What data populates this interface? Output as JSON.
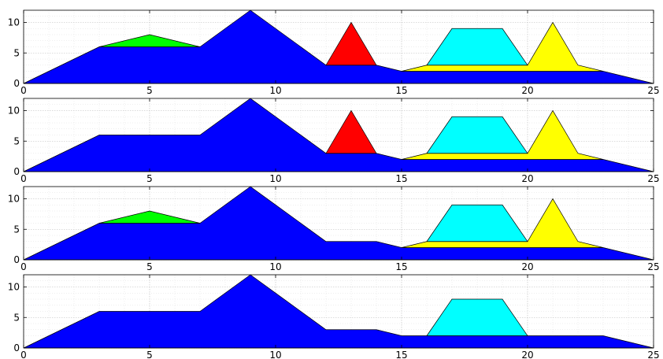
{
  "chart_data": [
    {
      "type": "area",
      "stacked": true,
      "xlim": [
        0,
        25
      ],
      "ylim": [
        0,
        12
      ],
      "xticks": [
        "0",
        "5",
        "10",
        "15",
        "20",
        "25"
      ],
      "yticks": [
        "0",
        "5",
        "10"
      ],
      "grid": true,
      "series": [
        {
          "color": "#0000ff",
          "points": [
            [
              0,
              0
            ],
            [
              3,
              6
            ],
            [
              7,
              6
            ],
            [
              9,
              12
            ],
            [
              12,
              3
            ],
            [
              14,
              3
            ],
            [
              15,
              2
            ],
            [
              23,
              2
            ],
            [
              25,
              0
            ]
          ]
        },
        {
          "color": "#00ff00",
          "points": [
            [
              3,
              0
            ],
            [
              5,
              2
            ],
            [
              7,
              0
            ]
          ]
        },
        {
          "color": "#ff0000",
          "points": [
            [
              12,
              0
            ],
            [
              13,
              7
            ],
            [
              14,
              0
            ]
          ]
        },
        {
          "color": "#ffff00",
          "points": [
            [
              15,
              0
            ],
            [
              16,
              1
            ],
            [
              20,
              1
            ],
            [
              21,
              8
            ],
            [
              22,
              1
            ],
            [
              23,
              0
            ]
          ]
        },
        {
          "color": "#00ffff",
          "points": [
            [
              16,
              0
            ],
            [
              17,
              6
            ],
            [
              19,
              6
            ],
            [
              20,
              0
            ]
          ]
        }
      ]
    },
    {
      "type": "area",
      "stacked": true,
      "xlim": [
        0,
        25
      ],
      "ylim": [
        0,
        12
      ],
      "xticks": [
        "0",
        "5",
        "10",
        "15",
        "20",
        "25"
      ],
      "yticks": [
        "0",
        "5",
        "10"
      ],
      "grid": true,
      "series": [
        {
          "color": "#0000ff",
          "points": [
            [
              0,
              0
            ],
            [
              3,
              6
            ],
            [
              7,
              6
            ],
            [
              9,
              12
            ],
            [
              12,
              3
            ],
            [
              14,
              3
            ],
            [
              15,
              2
            ],
            [
              23,
              2
            ],
            [
              25,
              0
            ]
          ]
        },
        {
          "color": "#ff0000",
          "points": [
            [
              12,
              0
            ],
            [
              13,
              7
            ],
            [
              14,
              0
            ]
          ]
        },
        {
          "color": "#ffff00",
          "points": [
            [
              15,
              0
            ],
            [
              16,
              1
            ],
            [
              20,
              1
            ],
            [
              21,
              8
            ],
            [
              22,
              1
            ],
            [
              23,
              0
            ]
          ]
        },
        {
          "color": "#00ffff",
          "points": [
            [
              16,
              0
            ],
            [
              17,
              6
            ],
            [
              19,
              6
            ],
            [
              20,
              0
            ]
          ]
        }
      ]
    },
    {
      "type": "area",
      "stacked": true,
      "xlim": [
        0,
        25
      ],
      "ylim": [
        0,
        12
      ],
      "xticks": [
        "0",
        "5",
        "10",
        "15",
        "20",
        "25"
      ],
      "yticks": [
        "0",
        "5",
        "10"
      ],
      "grid": true,
      "series": [
        {
          "color": "#0000ff",
          "points": [
            [
              0,
              0
            ],
            [
              3,
              6
            ],
            [
              7,
              6
            ],
            [
              9,
              12
            ],
            [
              12,
              3
            ],
            [
              14,
              3
            ],
            [
              15,
              2
            ],
            [
              23,
              2
            ],
            [
              25,
              0
            ]
          ]
        },
        {
          "color": "#00ff00",
          "points": [
            [
              3,
              0
            ],
            [
              5,
              2
            ],
            [
              7,
              0
            ]
          ]
        },
        {
          "color": "#ffff00",
          "points": [
            [
              15,
              0
            ],
            [
              16,
              1
            ],
            [
              20,
              1
            ],
            [
              21,
              8
            ],
            [
              22,
              1
            ],
            [
              23,
              0
            ]
          ]
        },
        {
          "color": "#00ffff",
          "points": [
            [
              16,
              0
            ],
            [
              17,
              6
            ],
            [
              19,
              6
            ],
            [
              20,
              0
            ]
          ]
        }
      ]
    },
    {
      "type": "area",
      "stacked": true,
      "xlim": [
        0,
        25
      ],
      "ylim": [
        0,
        12
      ],
      "xticks": [
        "0",
        "5",
        "10",
        "15",
        "20",
        "25"
      ],
      "yticks": [
        "0",
        "5",
        "10"
      ],
      "grid": true,
      "series": [
        {
          "color": "#0000ff",
          "points": [
            [
              0,
              0
            ],
            [
              3,
              6
            ],
            [
              7,
              6
            ],
            [
              9,
              12
            ],
            [
              12,
              3
            ],
            [
              14,
              3
            ],
            [
              15,
              2
            ],
            [
              23,
              2
            ],
            [
              25,
              0
            ]
          ]
        },
        {
          "color": "#00ffff",
          "points": [
            [
              16,
              0
            ],
            [
              17,
              6
            ],
            [
              19,
              6
            ],
            [
              20,
              0
            ]
          ]
        }
      ]
    }
  ]
}
